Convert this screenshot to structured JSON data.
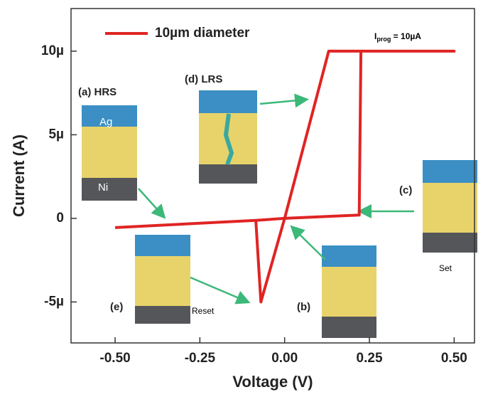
{
  "chart_data": {
    "type": "line",
    "x_label": "Voltage (V)",
    "y_label": "Current (A)",
    "series": [
      {
        "name": "10µm diameter",
        "color": "#e02424",
        "x": [
          -0.5,
          -0.085,
          0.0,
          0.22,
          0.225,
          0.5,
          0.13,
          0.0,
          -0.07,
          -0.085
        ],
        "values": [
          -5.5e-07,
          -1.2e-07,
          0,
          2e-07,
          1e-05,
          1e-05,
          1e-05,
          0,
          -5e-06,
          -1.2e-07
        ]
      }
    ],
    "xlim": [
      -0.63,
      0.56
    ],
    "ylim": [
      -7.45e-06,
      1.255e-05
    ],
    "xticks": [
      {
        "value": -0.5,
        "label": "-0.50"
      },
      {
        "value": -0.25,
        "label": "-0.25"
      },
      {
        "value": 0,
        "label": "0.00"
      },
      {
        "value": 0.25,
        "label": "0.25"
      },
      {
        "value": 0.5,
        "label": "0.50"
      }
    ],
    "yticks": [
      {
        "value": -5e-06,
        "label": "-5µ"
      },
      0,
      {
        "value": 5e-06,
        "label": "5µ"
      },
      {
        "value": 1e-05,
        "label": "10µ"
      }
    ],
    "grid": false,
    "legend": "top-left",
    "annotations": {
      "iprog_main": "I",
      "iprog_sub": "prog",
      "iprog_rest": " = 10µA",
      "a": "(a) HRS",
      "d": "(d) LRS",
      "c": "(c)",
      "set": "Set",
      "b": "(b)",
      "e": "(e)",
      "reset": "Reset",
      "ag": "Ag",
      "ni": "Ni"
    }
  }
}
